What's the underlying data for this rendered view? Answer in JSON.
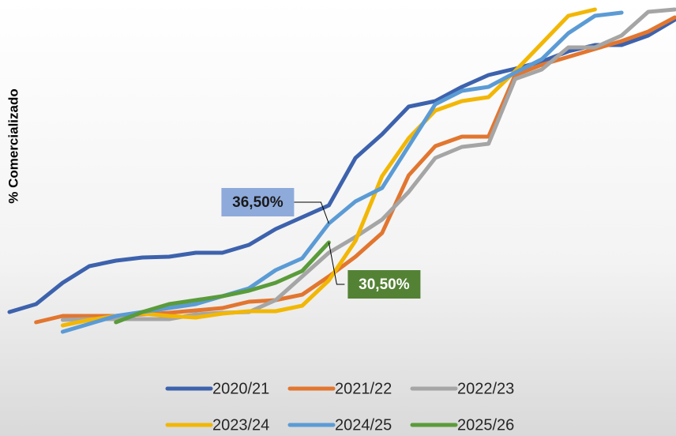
{
  "chart_data": {
    "type": "line",
    "y_label": "% Comercializado",
    "categories": [
      null,
      null,
      null,
      null,
      null,
      null,
      null,
      null,
      null,
      null,
      null,
      null,
      null,
      null,
      null,
      null,
      null,
      null,
      null,
      null,
      null,
      null,
      null,
      null,
      null,
      null
    ],
    "ylim": [
      0,
      107
    ],
    "yticks": [],
    "series": [
      {
        "name": "2020/21",
        "color": "#3d62ad",
        "values": [
          8.5,
          11,
          17.75,
          23,
          24.75,
          25.75,
          26,
          27.25,
          27.25,
          29.75,
          34.75,
          38.5,
          42.25,
          57.25,
          64.75,
          73.5,
          75.25,
          79.75,
          83.5,
          85.5,
          87.75,
          91,
          93,
          93,
          96,
          101
        ]
      },
      {
        "name": "2021/22",
        "color": "#e2762f",
        "values": [
          null,
          5.25,
          7.25,
          7.25,
          7.25,
          7.75,
          8.25,
          9,
          9.75,
          11.75,
          12.25,
          14,
          19.75,
          26,
          33.5,
          51.75,
          61,
          64,
          64,
          83.5,
          86.75,
          89.25,
          91.75,
          94.25,
          97.25,
          101.75
        ]
      },
      {
        "name": "2022/23",
        "color": "#a5a5a5",
        "values": [
          null,
          null,
          6,
          6.25,
          6.25,
          6.25,
          6.25,
          7.75,
          8.25,
          8.5,
          12.25,
          19.75,
          27.25,
          32.25,
          37.75,
          46.5,
          57.25,
          60.75,
          61.75,
          82.25,
          85.25,
          92.25,
          92.25,
          96,
          103.5,
          104.25
        ]
      },
      {
        "name": "2023/24",
        "color": "#f2b705",
        "values": [
          null,
          null,
          4.25,
          6,
          7.25,
          8,
          7.25,
          6.75,
          8,
          8.75,
          8.75,
          10.5,
          18.5,
          31,
          51.5,
          63.5,
          72.25,
          75.25,
          76.5,
          84.75,
          93.5,
          102.25,
          104.25,
          null,
          null,
          null
        ]
      },
      {
        "name": "2024/25",
        "color": "#5b9bd5",
        "values": [
          null,
          null,
          2.25,
          4.75,
          7.25,
          8.5,
          9.75,
          11,
          13.5,
          16,
          21.75,
          25.5,
          36.5,
          43.5,
          47.75,
          61,
          74.25,
          78.5,
          79.75,
          84.25,
          88.5,
          96.75,
          102.25,
          103.25,
          null,
          null
        ],
        "value_labels": [
          null,
          null,
          null,
          null,
          null,
          null,
          null,
          null,
          null,
          null,
          null,
          null,
          "36,50%",
          null,
          null,
          null,
          null,
          null,
          null,
          null,
          null,
          null,
          null,
          null,
          null,
          null
        ]
      },
      {
        "name": "2025/26",
        "color": "#5a9b3a",
        "values": [
          null,
          null,
          null,
          null,
          5.25,
          8.5,
          11,
          12.25,
          13.5,
          15.25,
          17.75,
          21.5,
          30.5,
          null,
          null,
          null,
          null,
          null,
          null,
          null,
          null,
          null,
          null,
          null,
          null,
          null
        ],
        "value_labels": [
          null,
          null,
          null,
          null,
          null,
          null,
          null,
          null,
          null,
          null,
          null,
          null,
          "30,50%",
          null,
          null,
          null,
          null,
          null,
          null,
          null,
          null,
          null,
          null,
          null,
          null,
          null
        ]
      }
    ]
  }
}
